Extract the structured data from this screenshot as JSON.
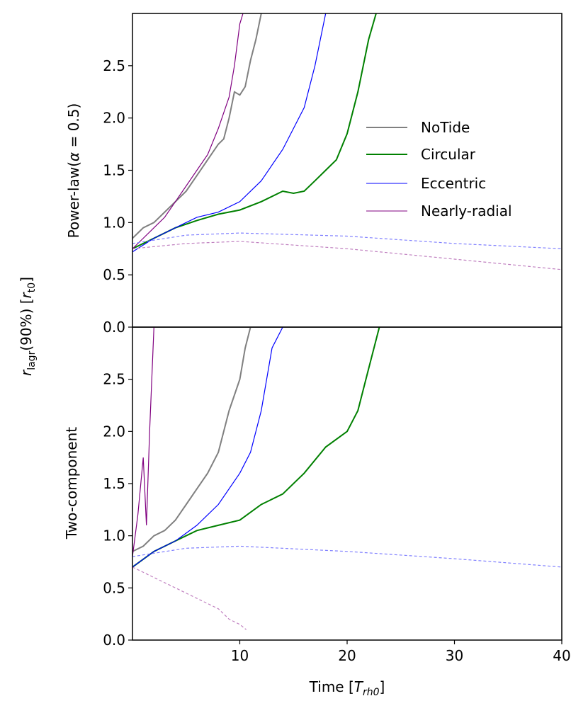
{
  "figure": {
    "shared_ylabel": "r_lagr(90%) [r_t0]",
    "shared_ylabel_parts": {
      "r": "r",
      "sub1": "lagr",
      "mid": "(90%) [",
      "r2": "r",
      "sub2": "t0",
      "end": "]"
    },
    "xlabel_parts": {
      "pre": "Time [",
      "T": "T",
      "sub": "rh0",
      "post": "]"
    }
  },
  "chart_data": [
    {
      "type": "line",
      "panel": "top",
      "ylabel_parts": {
        "pre": "Power-law(",
        "alpha": "α",
        "post": " = 0.5)"
      },
      "xlabel": "Time [T_rh0]",
      "xlim": [
        0,
        40
      ],
      "ylim": [
        0,
        3.0
      ],
      "xticks": [
        10,
        20,
        30,
        40
      ],
      "yticks": [
        0.0,
        0.5,
        1.0,
        1.5,
        2.0,
        2.5
      ],
      "xtick_labels": [
        "10",
        "20",
        "30",
        "40"
      ],
      "ytick_labels": [
        "0.0",
        "0.5",
        "1.0",
        "1.5",
        "2.0",
        "2.5"
      ],
      "grid": false,
      "legend_placement": "center-right",
      "series": [
        {
          "name": "NoTide",
          "color": "#808080",
          "style": "solid",
          "points": [
            [
              0,
              0.85
            ],
            [
              0.5,
              0.9
            ],
            [
              1,
              0.95
            ],
            [
              2,
              1.0
            ],
            [
              3,
              1.1
            ],
            [
              4,
              1.2
            ],
            [
              5,
              1.3
            ],
            [
              6,
              1.45
            ],
            [
              7,
              1.6
            ],
            [
              8,
              1.75
            ],
            [
              8.5,
              1.8
            ],
            [
              9,
              2.0
            ],
            [
              9.5,
              2.25
            ],
            [
              10,
              2.22
            ],
            [
              10.5,
              2.3
            ],
            [
              11,
              2.55
            ],
            [
              11.5,
              2.75
            ],
            [
              12,
              3.0
            ]
          ]
        },
        {
          "name": "Circular",
          "color": "#008000",
          "style": "solid",
          "points": [
            [
              0,
              0.75
            ],
            [
              2,
              0.85
            ],
            [
              4,
              0.95
            ],
            [
              6,
              1.02
            ],
            [
              8,
              1.08
            ],
            [
              10,
              1.12
            ],
            [
              12,
              1.2
            ],
            [
              14,
              1.3
            ],
            [
              15,
              1.28
            ],
            [
              16,
              1.3
            ],
            [
              17,
              1.4
            ],
            [
              18,
              1.5
            ],
            [
              19,
              1.6
            ],
            [
              20,
              1.85
            ],
            [
              21,
              2.25
            ],
            [
              22,
              2.75
            ],
            [
              22.7,
              3.0
            ]
          ]
        },
        {
          "name": "Eccentric",
          "color": "#0000ff",
          "style": "solid",
          "points": [
            [
              0,
              0.72
            ],
            [
              2,
              0.85
            ],
            [
              4,
              0.95
            ],
            [
              6,
              1.05
            ],
            [
              8,
              1.1
            ],
            [
              10,
              1.2
            ],
            [
              12,
              1.4
            ],
            [
              14,
              1.7
            ],
            [
              15,
              1.9
            ],
            [
              16,
              2.1
            ],
            [
              17,
              2.5
            ],
            [
              18,
              3.0
            ]
          ]
        },
        {
          "name": "Nearly-radial",
          "color": "#800080",
          "style": "solid",
          "points": [
            [
              0,
              0.75
            ],
            [
              1,
              0.85
            ],
            [
              2,
              0.95
            ],
            [
              3,
              1.05
            ],
            [
              4,
              1.2
            ],
            [
              5,
              1.35
            ],
            [
              6,
              1.5
            ],
            [
              7,
              1.65
            ],
            [
              8,
              1.9
            ],
            [
              9,
              2.2
            ],
            [
              9.5,
              2.5
            ],
            [
              10,
              2.9
            ],
            [
              10.3,
              3.0
            ]
          ]
        },
        {
          "name": "Eccentric (dashed)",
          "color": "#8080ff",
          "style": "dashed",
          "points": [
            [
              0,
              0.8
            ],
            [
              5,
              0.88
            ],
            [
              10,
              0.9
            ],
            [
              20,
              0.87
            ],
            [
              30,
              0.8
            ],
            [
              40,
              0.75
            ]
          ]
        },
        {
          "name": "Nearly-radial (dashed)",
          "color": "#c080c0",
          "style": "dashed",
          "points": [
            [
              0,
              0.75
            ],
            [
              5,
              0.8
            ],
            [
              10,
              0.82
            ],
            [
              20,
              0.75
            ],
            [
              30,
              0.65
            ],
            [
              40,
              0.55
            ]
          ]
        }
      ]
    },
    {
      "type": "line",
      "panel": "bottom",
      "ylabel": "Two-component",
      "xlabel": "Time [T_rh0]",
      "xlim": [
        0,
        40
      ],
      "ylim": [
        0,
        3.0
      ],
      "xticks": [
        10,
        20,
        30,
        40
      ],
      "yticks": [
        0.0,
        0.5,
        1.0,
        1.5,
        2.0,
        2.5
      ],
      "xtick_labels": [
        "10",
        "20",
        "30",
        "40"
      ],
      "ytick_labels": [
        "0.0",
        "0.5",
        "1.0",
        "1.5",
        "2.0",
        "2.5"
      ],
      "grid": false,
      "series": [
        {
          "name": "NoTide",
          "color": "#808080",
          "style": "solid",
          "points": [
            [
              0,
              0.85
            ],
            [
              1,
              0.9
            ],
            [
              2,
              1.0
            ],
            [
              3,
              1.05
            ],
            [
              4,
              1.15
            ],
            [
              5,
              1.3
            ],
            [
              6,
              1.45
            ],
            [
              7,
              1.6
            ],
            [
              8,
              1.8
            ],
            [
              9,
              2.2
            ],
            [
              10,
              2.5
            ],
            [
              10.5,
              2.8
            ],
            [
              11,
              3.0
            ]
          ]
        },
        {
          "name": "Circular",
          "color": "#008000",
          "style": "solid",
          "points": [
            [
              0,
              0.7
            ],
            [
              2,
              0.85
            ],
            [
              4,
              0.95
            ],
            [
              6,
              1.05
            ],
            [
              8,
              1.1
            ],
            [
              10,
              1.15
            ],
            [
              12,
              1.3
            ],
            [
              14,
              1.4
            ],
            [
              16,
              1.6
            ],
            [
              18,
              1.85
            ],
            [
              20,
              2.0
            ],
            [
              21,
              2.2
            ],
            [
              22,
              2.6
            ],
            [
              23,
              3.0
            ]
          ]
        },
        {
          "name": "Eccentric",
          "color": "#0000ff",
          "style": "solid",
          "points": [
            [
              0,
              0.7
            ],
            [
              2,
              0.85
            ],
            [
              4,
              0.95
            ],
            [
              6,
              1.1
            ],
            [
              8,
              1.3
            ],
            [
              10,
              1.6
            ],
            [
              11,
              1.8
            ],
            [
              12,
              2.2
            ],
            [
              13,
              2.8
            ],
            [
              14,
              3.0
            ]
          ]
        },
        {
          "name": "Nearly-radial",
          "color": "#800080",
          "style": "solid",
          "points": [
            [
              0,
              0.8
            ],
            [
              0.5,
              1.2
            ],
            [
              1,
              1.75
            ],
            [
              1.3,
              1.1
            ],
            [
              1.6,
              2.0
            ],
            [
              2,
              3.0
            ]
          ]
        },
        {
          "name": "Eccentric (dashed)",
          "color": "#8080ff",
          "style": "dashed",
          "points": [
            [
              0,
              0.8
            ],
            [
              5,
              0.88
            ],
            [
              10,
              0.9
            ],
            [
              20,
              0.85
            ],
            [
              30,
              0.78
            ],
            [
              40,
              0.7
            ]
          ]
        },
        {
          "name": "Nearly-radial (dashed)",
          "color": "#c080c0",
          "style": "dashed",
          "points": [
            [
              0,
              0.7
            ],
            [
              2,
              0.6
            ],
            [
              4,
              0.5
            ],
            [
              6,
              0.4
            ],
            [
              8,
              0.3
            ],
            [
              9,
              0.2
            ],
            [
              10,
              0.15
            ],
            [
              10.6,
              0.1
            ]
          ]
        }
      ]
    }
  ]
}
